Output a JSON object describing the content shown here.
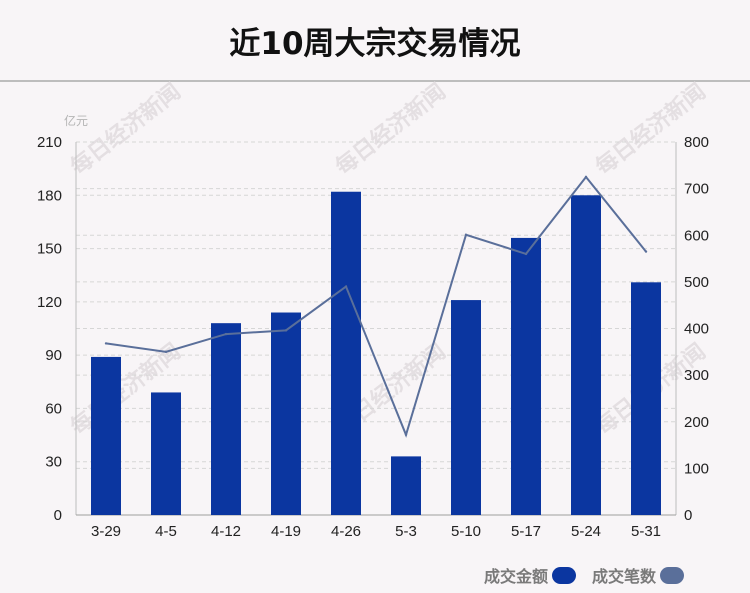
{
  "title": "近10周大宗交易情况",
  "colors": {
    "bar": "#0b36a0",
    "line": "#5a6f9a",
    "grid": "#d6d6d6"
  },
  "watermark": "每日经济新闻",
  "chart_data": {
    "type": "bar",
    "categories": [
      "3-29",
      "4-5",
      "4-12",
      "4-19",
      "4-26",
      "5-3",
      "5-10",
      "5-17",
      "5-24",
      "5-31"
    ],
    "series": [
      {
        "name": "成交金额",
        "type": "bar",
        "axis": "left",
        "values": [
          89,
          69,
          108,
          114,
          182,
          33,
          121,
          156,
          180,
          131
        ]
      },
      {
        "name": "成交笔数",
        "type": "line",
        "axis": "right",
        "values": [
          368,
          350,
          388,
          396,
          490,
          172,
          601,
          560,
          725,
          565
        ]
      }
    ],
    "y_left": {
      "label": "亿元",
      "ylim": [
        0,
        210
      ],
      "ticks": [
        0,
        30,
        60,
        90,
        120,
        150,
        180,
        210
      ]
    },
    "y_right": {
      "ylim": [
        0,
        800
      ],
      "ticks": [
        0,
        100,
        200,
        300,
        400,
        500,
        600,
        700,
        800
      ]
    },
    "grid": true,
    "legend_position": "bottom-right"
  }
}
